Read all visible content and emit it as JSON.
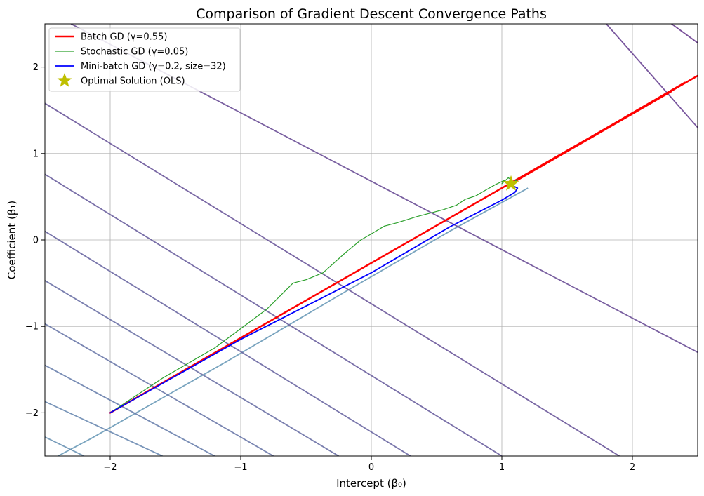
{
  "chart_data": {
    "type": "line",
    "title": "Comparison of Gradient Descent Convergence Paths",
    "xlabel": "Intercept (β₀)",
    "ylabel": "Coefficient (β₁)",
    "xlim": [
      -2.5,
      2.5
    ],
    "ylim": [
      -2.5,
      2.5
    ],
    "xticks": [
      -2,
      -1,
      0,
      1,
      2
    ],
    "yticks": [
      -2,
      -1,
      0,
      1,
      2
    ],
    "xtick_labels": [
      "−2",
      "−1",
      "0",
      "1",
      "2"
    ],
    "ytick_labels": [
      "−2",
      "−1",
      "0",
      "1",
      "2"
    ],
    "grid": true,
    "legend_position": "top-left",
    "contours": {
      "description_color_range": [
        "#6a9ab8",
        "#6a3d8f"
      ],
      "lines": [
        {
          "points": [
            [
              -2.4,
              -2.5
            ],
            [
              -2.15,
              -2.3
            ],
            [
              -1.8,
              -2.0
            ],
            [
              -1.1,
              -1.4
            ],
            [
              -0.2,
              -0.6
            ],
            [
              0.6,
              0.1
            ],
            [
              1.2,
              0.6
            ]
          ]
        },
        {
          "points": [
            [
              -2.5,
              -2.28
            ],
            [
              -2.2,
              -2.5
            ]
          ]
        },
        {
          "points": [
            [
              -2.5,
              -1.87
            ],
            [
              -1.6,
              -2.5
            ]
          ]
        },
        {
          "points": [
            [
              -2.5,
              -1.45
            ],
            [
              -1.2,
              -2.5
            ]
          ]
        },
        {
          "points": [
            [
              -2.5,
              -0.97
            ],
            [
              -0.75,
              -2.5
            ]
          ]
        },
        {
          "points": [
            [
              -2.5,
              -0.47
            ],
            [
              -0.25,
              -2.5
            ]
          ]
        },
        {
          "points": [
            [
              -2.5,
              0.1
            ],
            [
              0.3,
              -2.5
            ]
          ]
        },
        {
          "points": [
            [
              -2.5,
              0.76
            ],
            [
              1.0,
              -2.5
            ]
          ]
        },
        {
          "points": [
            [
              -2.5,
              1.58
            ],
            [
              1.9,
              -2.5
            ]
          ]
        },
        {
          "points": [
            [
              -2.3,
              2.5
            ],
            [
              2.5,
              -1.3
            ]
          ]
        },
        {
          "points": [
            [
              1.8,
              2.5
            ],
            [
              2.5,
              1.3
            ]
          ]
        },
        {
          "points": [
            [
              2.3,
              2.5
            ],
            [
              2.5,
              2.28
            ]
          ]
        }
      ]
    },
    "series": [
      {
        "name": "Batch GD (γ=0.55)",
        "color": "#ff0000",
        "width": 2.5,
        "points": [
          [
            -2.0,
            -2.0
          ],
          [
            2.5,
            1.9
          ],
          [
            1.1,
            0.68
          ],
          [
            2.4,
            1.82
          ],
          [
            1.08,
            0.66
          ],
          [
            2.3,
            1.72
          ],
          [
            1.07,
            0.65
          ]
        ]
      },
      {
        "name": "Stochastic GD (γ=0.05)",
        "color": "#2ca02c",
        "width": 1.2,
        "points": [
          [
            -2.0,
            -2.0
          ],
          [
            -1.6,
            -1.6
          ],
          [
            -1.2,
            -1.25
          ],
          [
            -0.95,
            -0.97
          ],
          [
            -0.8,
            -0.8
          ],
          [
            -0.6,
            -0.5
          ],
          [
            -0.5,
            -0.46
          ],
          [
            -0.37,
            -0.38
          ],
          [
            -0.2,
            -0.15
          ],
          [
            -0.08,
            0.0
          ],
          [
            0.0,
            0.07
          ],
          [
            0.1,
            0.16
          ],
          [
            0.2,
            0.2
          ],
          [
            0.35,
            0.27
          ],
          [
            0.55,
            0.35
          ],
          [
            0.65,
            0.4
          ],
          [
            0.72,
            0.47
          ],
          [
            0.8,
            0.51
          ],
          [
            0.88,
            0.58
          ],
          [
            0.95,
            0.64
          ],
          [
            1.02,
            0.69
          ],
          [
            1.0,
            0.65
          ],
          [
            1.05,
            0.72
          ],
          [
            1.1,
            0.66
          ],
          [
            1.04,
            0.62
          ],
          [
            1.12,
            0.7
          ],
          [
            1.08,
            0.64
          ]
        ]
      },
      {
        "name": "Mini-batch GD (γ=0.2, size=32)",
        "color": "#0000ff",
        "width": 1.8,
        "points": [
          [
            -2.0,
            -2.0
          ],
          [
            -1.0,
            -1.15
          ],
          [
            0.0,
            -0.38
          ],
          [
            0.6,
            0.15
          ],
          [
            1.0,
            0.46
          ],
          [
            1.1,
            0.55
          ],
          [
            1.12,
            0.6
          ],
          [
            1.08,
            0.63
          ]
        ]
      }
    ],
    "optimal": {
      "name": "Optimal Solution (OLS)",
      "color": "#bfbf00",
      "x": 1.07,
      "y": 0.65
    }
  }
}
